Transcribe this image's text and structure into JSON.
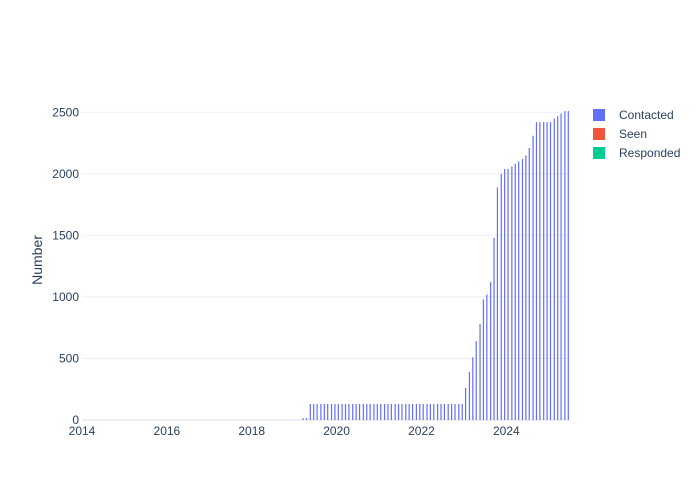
{
  "chart_data": {
    "type": "bar",
    "title": "",
    "xlabel": "",
    "ylabel": "Number",
    "xlim": [
      2014.0,
      2025.5
    ],
    "ylim": [
      0,
      2600
    ],
    "x_ticks": [
      "2014",
      "2016",
      "2018",
      "2020",
      "2022",
      "2024"
    ],
    "y_ticks": [
      "0",
      "500",
      "1000",
      "1500",
      "2000",
      "2500"
    ],
    "grid": true,
    "legend_position": "top-right",
    "series": [
      {
        "name": "Contacted",
        "color": "#636efa",
        "x": [
          2019.21,
          2019.29,
          2019.38,
          2019.46,
          2019.54,
          2019.63,
          2019.71,
          2019.79,
          2019.88,
          2019.96,
          2020.04,
          2020.13,
          2020.21,
          2020.29,
          2020.38,
          2020.46,
          2020.54,
          2020.63,
          2020.71,
          2020.79,
          2020.88,
          2020.96,
          2021.04,
          2021.13,
          2021.21,
          2021.29,
          2021.38,
          2021.46,
          2021.54,
          2021.63,
          2021.71,
          2021.79,
          2021.88,
          2021.96,
          2022.04,
          2022.13,
          2022.21,
          2022.29,
          2022.38,
          2022.46,
          2022.54,
          2022.63,
          2022.71,
          2022.79,
          2022.88,
          2022.96,
          2023.04,
          2023.13,
          2023.21,
          2023.29,
          2023.38,
          2023.46,
          2023.54,
          2023.63,
          2023.71,
          2023.79,
          2023.88,
          2023.96,
          2024.04,
          2024.13,
          2024.21,
          2024.29,
          2024.38,
          2024.46,
          2024.54,
          2024.63,
          2024.71,
          2024.79,
          2024.88,
          2024.96,
          2025.04,
          2025.13,
          2025.21,
          2025.29,
          2025.38,
          2025.46
        ],
        "values": [
          15,
          15,
          130,
          130,
          130,
          130,
          130,
          130,
          130,
          130,
          130,
          130,
          130,
          130,
          130,
          130,
          130,
          130,
          130,
          130,
          130,
          130,
          130,
          130,
          130,
          130,
          130,
          130,
          130,
          130,
          130,
          130,
          130,
          130,
          130,
          130,
          130,
          130,
          130,
          130,
          130,
          130,
          130,
          130,
          130,
          130,
          260,
          390,
          510,
          640,
          780,
          980,
          1020,
          1120,
          1480,
          1890,
          2000,
          2040,
          2040,
          2060,
          2080,
          2100,
          2120,
          2150,
          2210,
          2310,
          2420,
          2420,
          2420,
          2420,
          2420,
          2450,
          2470,
          2490,
          2510,
          2510
        ]
      },
      {
        "name": "Seen",
        "color": "#ef553b",
        "x": [],
        "values": []
      },
      {
        "name": "Responded",
        "color": "#00cc96",
        "x": [],
        "values": []
      }
    ]
  }
}
